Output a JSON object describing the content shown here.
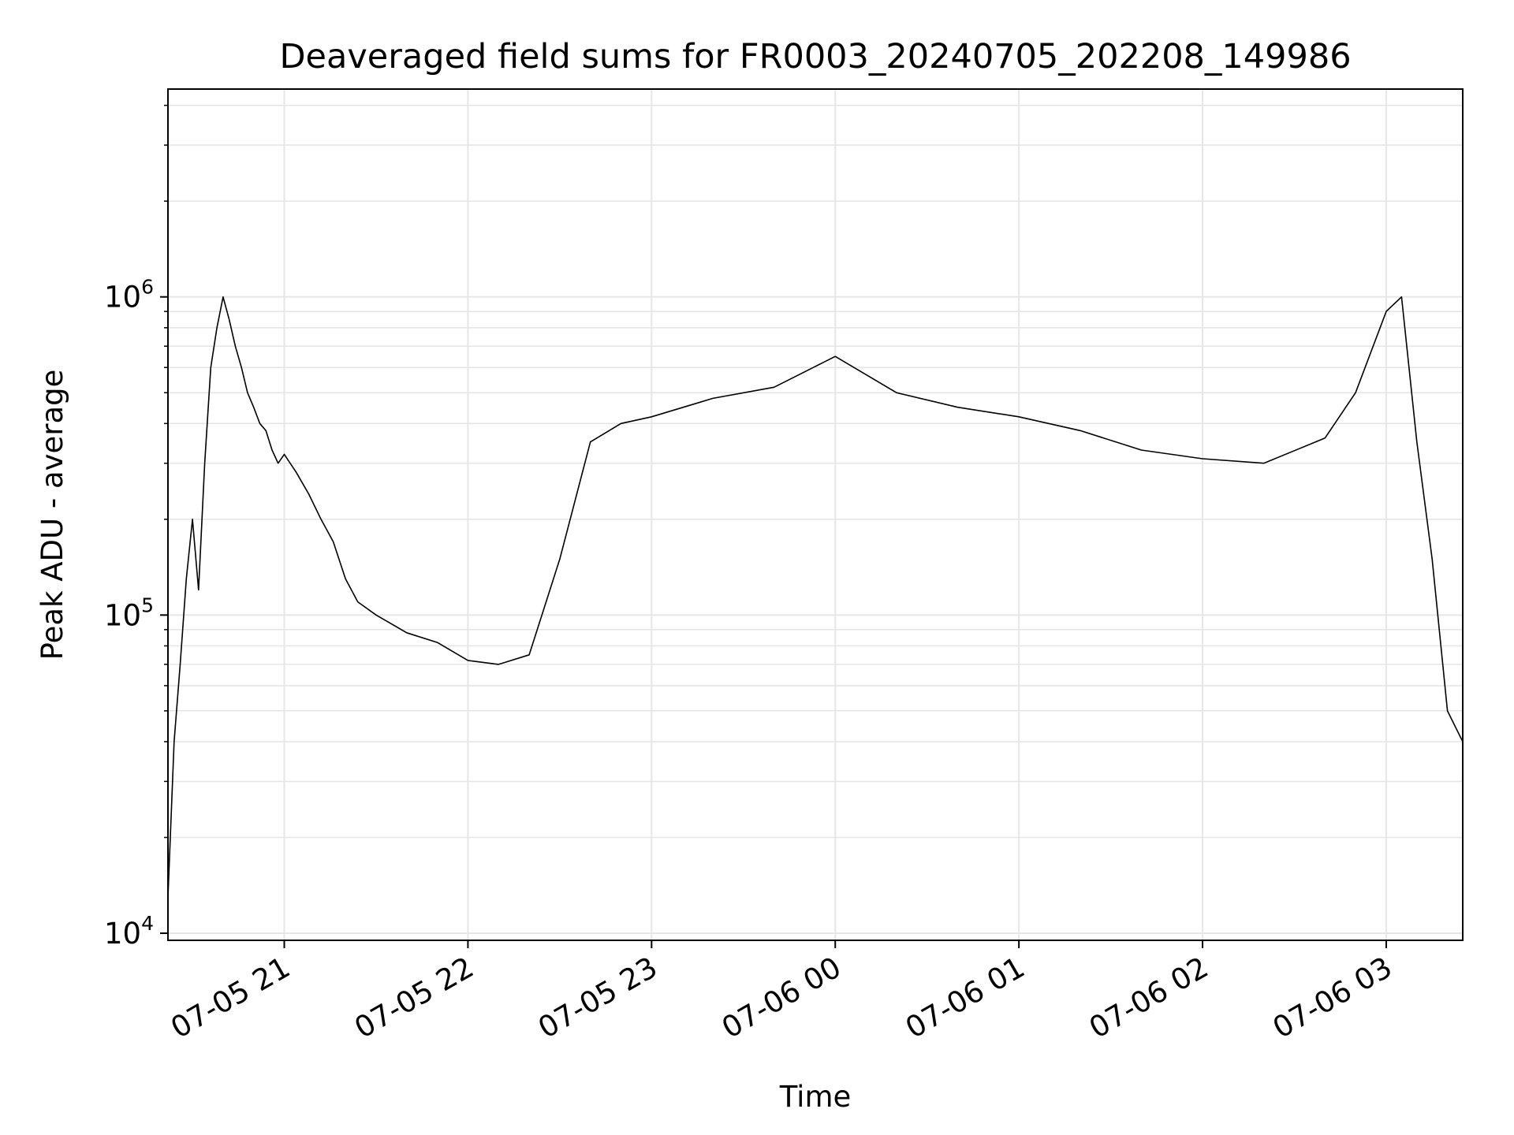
{
  "chart_data": {
    "type": "line",
    "title": "Deaveraged field sums for FR0003_20240705_202208_149986",
    "xlabel": "Time",
    "ylabel": "Peak ADU - average",
    "y_scale": "log",
    "ylim": [
      9500,
      4500000
    ],
    "xlim": [
      "2024-07-05 20:22",
      "2024-07-06 03:25"
    ],
    "grid": true,
    "line_color": "#000000",
    "x_ticks": [
      {
        "label": "07-05 21",
        "t": "2024-07-05 21:00"
      },
      {
        "label": "07-05 22",
        "t": "2024-07-05 22:00"
      },
      {
        "label": "07-05 23",
        "t": "2024-07-05 23:00"
      },
      {
        "label": "07-06 00",
        "t": "2024-07-06 00:00"
      },
      {
        "label": "07-06 01",
        "t": "2024-07-06 01:00"
      },
      {
        "label": "07-06 02",
        "t": "2024-07-06 02:00"
      },
      {
        "label": "07-06 03",
        "t": "2024-07-06 03:00"
      }
    ],
    "y_ticks": [
      {
        "base": "10",
        "exp": "4",
        "value": 10000
      },
      {
        "base": "10",
        "exp": "5",
        "value": 100000
      },
      {
        "base": "10",
        "exp": "6",
        "value": 1000000
      }
    ],
    "series": [
      {
        "color": "#000000",
        "points": [
          [
            "2024-07-05 20:22",
            13000
          ],
          [
            "2024-07-05 20:24",
            40000
          ],
          [
            "2024-07-05 20:26",
            70000
          ],
          [
            "2024-07-05 20:28",
            130000
          ],
          [
            "2024-07-05 20:30",
            200000
          ],
          [
            "2024-07-05 20:32",
            120000
          ],
          [
            "2024-07-05 20:34",
            300000
          ],
          [
            "2024-07-05 20:36",
            600000
          ],
          [
            "2024-07-05 20:38",
            800000
          ],
          [
            "2024-07-05 20:40",
            1000000
          ],
          [
            "2024-07-05 20:42",
            850000
          ],
          [
            "2024-07-05 20:44",
            700000
          ],
          [
            "2024-07-05 20:46",
            600000
          ],
          [
            "2024-07-05 20:48",
            500000
          ],
          [
            "2024-07-05 20:50",
            450000
          ],
          [
            "2024-07-05 20:52",
            400000
          ],
          [
            "2024-07-05 20:54",
            380000
          ],
          [
            "2024-07-05 20:56",
            330000
          ],
          [
            "2024-07-05 20:58",
            300000
          ],
          [
            "2024-07-05 21:00",
            320000
          ],
          [
            "2024-07-05 21:04",
            280000
          ],
          [
            "2024-07-05 21:08",
            240000
          ],
          [
            "2024-07-05 21:12",
            200000
          ],
          [
            "2024-07-05 21:16",
            170000
          ],
          [
            "2024-07-05 21:20",
            130000
          ],
          [
            "2024-07-05 21:24",
            110000
          ],
          [
            "2024-07-05 21:30",
            100000
          ],
          [
            "2024-07-05 21:40",
            88000
          ],
          [
            "2024-07-05 21:50",
            82000
          ],
          [
            "2024-07-05 22:00",
            72000
          ],
          [
            "2024-07-05 22:10",
            70000
          ],
          [
            "2024-07-05 22:20",
            75000
          ],
          [
            "2024-07-05 22:30",
            150000
          ],
          [
            "2024-07-05 22:40",
            350000
          ],
          [
            "2024-07-05 22:50",
            400000
          ],
          [
            "2024-07-05 23:00",
            420000
          ],
          [
            "2024-07-05 23:20",
            480000
          ],
          [
            "2024-07-05 23:40",
            520000
          ],
          [
            "2024-07-06 00:00",
            650000
          ],
          [
            "2024-07-06 00:20",
            500000
          ],
          [
            "2024-07-06 00:40",
            450000
          ],
          [
            "2024-07-06 01:00",
            420000
          ],
          [
            "2024-07-06 01:20",
            380000
          ],
          [
            "2024-07-06 01:40",
            330000
          ],
          [
            "2024-07-06 02:00",
            310000
          ],
          [
            "2024-07-06 02:20",
            300000
          ],
          [
            "2024-07-06 02:40",
            360000
          ],
          [
            "2024-07-06 02:50",
            500000
          ],
          [
            "2024-07-06 03:00",
            900000
          ],
          [
            "2024-07-06 03:05",
            1000000
          ],
          [
            "2024-07-06 03:10",
            350000
          ],
          [
            "2024-07-06 03:15",
            150000
          ],
          [
            "2024-07-06 03:20",
            50000
          ],
          [
            "2024-07-06 03:25",
            40000
          ]
        ]
      }
    ]
  }
}
